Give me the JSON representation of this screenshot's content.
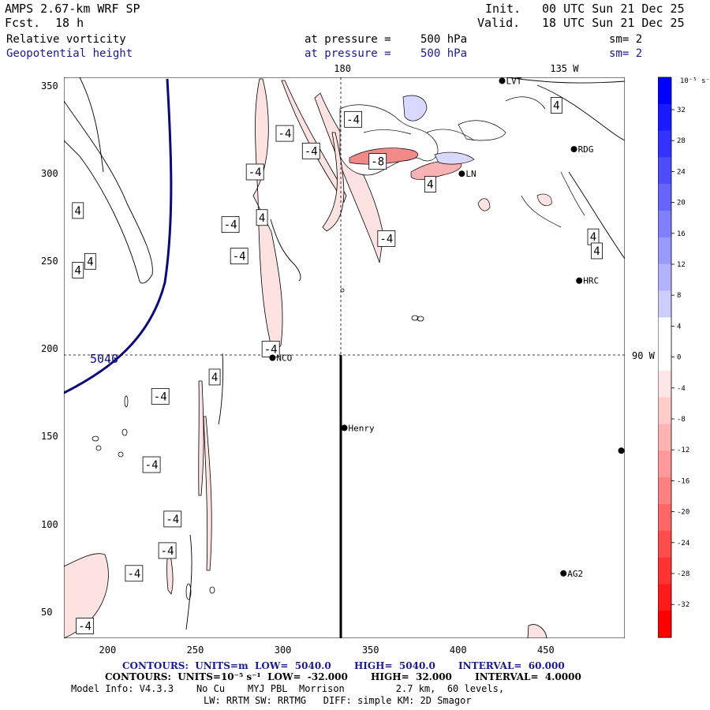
{
  "header": {
    "model_title": "AMPS 2.67-km WRF SP",
    "fcst_label": "Fcst.",
    "fcst_value": "18 h",
    "init_label": "Init.",
    "init_value": "00 UTC Sun 21 Dec 25",
    "valid_label": "Valid.",
    "valid_value": "18 UTC Sun 21 Dec 25"
  },
  "fields": [
    {
      "name": "Relative vorticity",
      "pressure_label": "at pressure =",
      "pressure_value": "500 hPa",
      "sm": "sm= 2"
    },
    {
      "name": "Geopotential height",
      "pressure_label": "at pressure =",
      "pressure_value": "500 hPa",
      "sm": "sm= 2"
    }
  ],
  "map": {
    "x_ticks": [
      "200",
      "250",
      "300",
      "350",
      "400",
      "450"
    ],
    "y_ticks": [
      "350",
      "300",
      "250",
      "200",
      "150",
      "100",
      "50"
    ],
    "x_tick_values": [
      200,
      250,
      300,
      350,
      400,
      450
    ],
    "y_tick_values": [
      350,
      300,
      250,
      200,
      150,
      100,
      50
    ],
    "x_range": [
      175,
      495
    ],
    "y_range": [
      35,
      355
    ],
    "meridian_labels": [
      "180",
      "135 W"
    ],
    "meridian_x": [
      334,
      465
    ],
    "parallel_label": "90 W",
    "parallel_y": 196,
    "height_contour_label": "5040",
    "stations": [
      {
        "name": "LVT",
        "x": 425,
        "y": 353
      },
      {
        "name": "RDG",
        "x": 466,
        "y": 314
      },
      {
        "name": "LN",
        "x": 402,
        "y": 300
      },
      {
        "name": "HRC",
        "x": 469,
        "y": 239
      },
      {
        "name": "NCO",
        "x": 294,
        "y": 195
      },
      {
        "name": "Henry",
        "x": 335,
        "y": 155
      },
      {
        "name": "AG2",
        "x": 460,
        "y": 72
      },
      {
        "name": "",
        "x": 493,
        "y": 142
      }
    ],
    "contour_labels": [
      {
        "text": "-4",
        "x": 340,
        "y": 331
      },
      {
        "text": "-4",
        "x": 301,
        "y": 323
      },
      {
        "text": "-4",
        "x": 316,
        "y": 313
      },
      {
        "text": "-4",
        "x": 284,
        "y": 301
      },
      {
        "text": "-8",
        "x": 354,
        "y": 307
      },
      {
        "text": "4",
        "x": 384,
        "y": 294
      },
      {
        "text": "4",
        "x": 456,
        "y": 339
      },
      {
        "text": "4",
        "x": 183,
        "y": 279
      },
      {
        "text": "-4",
        "x": 270,
        "y": 271
      },
      {
        "text": "4",
        "x": 288,
        "y": 275
      },
      {
        "text": "-4",
        "x": 359,
        "y": 263
      },
      {
        "text": "-4",
        "x": 275,
        "y": 253
      },
      {
        "text": "4",
        "x": 190,
        "y": 250
      },
      {
        "text": "4",
        "x": 183,
        "y": 245
      },
      {
        "text": "4",
        "x": 477,
        "y": 264
      },
      {
        "text": "4",
        "x": 479,
        "y": 256
      },
      {
        "text": "-4",
        "x": 293,
        "y": 200
      },
      {
        "text": "4",
        "x": 261,
        "y": 184
      },
      {
        "text": "-4",
        "x": 230,
        "y": 173
      },
      {
        "text": "-4",
        "x": 225,
        "y": 134
      },
      {
        "text": "-4",
        "x": 237,
        "y": 103
      },
      {
        "text": "-4",
        "x": 234,
        "y": 85
      },
      {
        "text": "-4",
        "x": 215,
        "y": 72
      },
      {
        "text": "-4",
        "x": 187,
        "y": 42
      }
    ]
  },
  "colorbar": {
    "unit": "10⁻⁵ s⁻¹",
    "labels": [
      "32",
      "28",
      "24",
      "20",
      "16",
      "12",
      "8",
      "4",
      "0",
      "-4",
      "-8",
      "-12",
      "-16",
      "-20",
      "-24",
      "-28",
      "-32"
    ],
    "colors": [
      "#0000ff",
      "#1a1aff",
      "#3333ff",
      "#4d4dff",
      "#6666ff",
      "#8080ff",
      "#9999ff",
      "#b3b3ff",
      "#ccccff",
      "#ffffff",
      "#ffffff",
      "#ffe6e6",
      "#ffcccc",
      "#ffb3b3",
      "#ff9999",
      "#ff8080",
      "#ff6666",
      "#ff4d4d",
      "#ff3333",
      "#ff1a1a",
      "#ff0000"
    ]
  },
  "footer": {
    "contours_height": "CONTOURS:  UNITS=m  LOW=  5040.0       HIGH=  5040.0       INTERVAL=  60.000",
    "contours_vort": "CONTOURS:  UNITS=10⁻⁵ s⁻¹  LOW=  -32.000       HIGH=  32.000       INTERVAL=  4.0000",
    "model_info_1": "Model Info: V4.3.3    No Cu    MYJ PBL  Morrison         2.7 km,  60 levels,",
    "model_info_2": "LW: RRTM SW: RRTMG   DIFF: simple KM: 2D Smagor"
  }
}
